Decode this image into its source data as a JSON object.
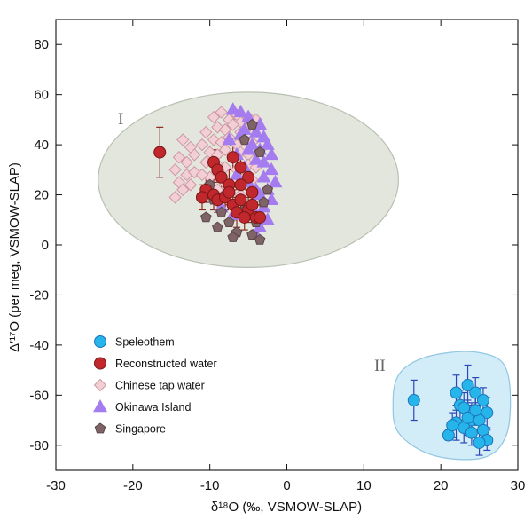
{
  "chart_data": {
    "type": "scatter",
    "x_label": "δ¹⁸O (‰, VSMOW-SLAP)",
    "y_label": "Δ′¹⁷O (per meg, VSMOW-SLAP)",
    "xlim": [
      -30,
      30
    ],
    "ylim": [
      -90,
      90
    ],
    "x_ticks": [
      -30,
      -20,
      -10,
      0,
      10,
      20,
      30
    ],
    "y_ticks": [
      -80,
      -60,
      -40,
      -20,
      0,
      20,
      40,
      60,
      80
    ],
    "x_tick_labels": [
      "-30",
      "-20",
      "-10",
      "0",
      "10",
      "20",
      "30"
    ],
    "y_tick_labels": [
      "-80",
      "-60",
      "-40",
      "-20",
      "0",
      "20",
      "40",
      "60",
      "80"
    ],
    "regions": [
      {
        "label": "I",
        "shape": "circle",
        "fill": "#e3e6dd",
        "stroke": "#b9bfb3",
        "cx": -5.0,
        "cy": 26.0,
        "rx": 19.5,
        "ry": 35.0
      },
      {
        "label": "II",
        "fill": "#d3edf8",
        "stroke": "#90c6e2"
      }
    ],
    "legend": [
      {
        "name": "Speleothem",
        "marker": "circle",
        "color": "#25b5ea",
        "edge": "#1d74b8"
      },
      {
        "name": "Reconstructed water",
        "marker": "circle",
        "color": "#c1282d",
        "edge": "#7a1614"
      },
      {
        "name": "Chinese tap water",
        "marker": "diamond",
        "color": "#f1cfd5",
        "edge": "#cf98a1"
      },
      {
        "name": "Okinawa Island",
        "marker": "triangle",
        "color": "#a57cf0",
        "edge": "#a57cf0"
      },
      {
        "name": "Singapore",
        "marker": "pentagon",
        "color": "#7e6467",
        "edge": "#5b4547"
      }
    ],
    "series": [
      {
        "name": "Chinese tap water",
        "points": [
          [
            -9.5,
            51
          ],
          [
            -8.5,
            53
          ],
          [
            -7.5,
            50
          ],
          [
            -6.5,
            52
          ],
          [
            -6,
            49
          ],
          [
            -5,
            51
          ],
          [
            -4,
            50
          ],
          [
            -9,
            47
          ],
          [
            -8,
            46
          ],
          [
            -7,
            48
          ],
          [
            -6,
            45
          ],
          [
            -5,
            47
          ],
          [
            -9.5,
            42
          ],
          [
            -8.5,
            41
          ],
          [
            -7.5,
            43
          ],
          [
            -6.5,
            40
          ],
          [
            -5.5,
            42
          ],
          [
            -4.5,
            41
          ],
          [
            -10,
            37
          ],
          [
            -9,
            36
          ],
          [
            -8,
            38
          ],
          [
            -7,
            35
          ],
          [
            -6,
            37
          ],
          [
            -5,
            36
          ],
          [
            -9,
            32
          ],
          [
            -8,
            31
          ],
          [
            -6.5,
            30
          ],
          [
            -5,
            32
          ],
          [
            -4,
            31
          ],
          [
            -10,
            27
          ],
          [
            -8.5,
            26
          ],
          [
            -7,
            25
          ],
          [
            -5.5,
            27
          ],
          [
            -4.5,
            26
          ],
          [
            -9,
            22
          ],
          [
            -7.5,
            21
          ],
          [
            -6,
            20
          ],
          [
            -4.5,
            22
          ],
          [
            -13.5,
            42
          ],
          [
            -12.5,
            39
          ],
          [
            -14,
            35
          ],
          [
            -13,
            33
          ],
          [
            -12,
            36
          ],
          [
            -14.5,
            30
          ],
          [
            -13,
            28
          ],
          [
            -12,
            29
          ],
          [
            -14,
            25
          ],
          [
            -13.5,
            22
          ],
          [
            -12.5,
            24
          ],
          [
            -14.5,
            19
          ],
          [
            -10.5,
            45
          ],
          [
            -11,
            40
          ],
          [
            -10.5,
            33
          ],
          [
            -11,
            28
          ]
        ]
      },
      {
        "name": "Okinawa Island",
        "points": [
          [
            -7,
            54
          ],
          [
            -6,
            53
          ],
          [
            -5,
            51
          ],
          [
            -3.5,
            48
          ],
          [
            -5.5,
            46
          ],
          [
            -4,
            45
          ],
          [
            -3,
            43
          ],
          [
            -2.5,
            40
          ],
          [
            -4.5,
            40
          ],
          [
            -3.5,
            38
          ],
          [
            -2,
            36
          ],
          [
            -3,
            33
          ],
          [
            -2,
            30
          ],
          [
            -3,
            27
          ],
          [
            -1.5,
            25
          ],
          [
            -2.5,
            22
          ],
          [
            -3.5,
            20
          ],
          [
            -2,
            18
          ],
          [
            -3,
            15
          ],
          [
            -4,
            12
          ],
          [
            -2.5,
            10
          ],
          [
            -3.5,
            7
          ],
          [
            -4,
            4
          ],
          [
            -6,
            44
          ],
          [
            -7.5,
            42
          ],
          [
            -5,
            38
          ],
          [
            -6.5,
            36
          ],
          [
            -4,
            34
          ],
          [
            -5.5,
            31
          ],
          [
            -6.5,
            28
          ],
          [
            -5,
            25
          ],
          [
            -4,
            22
          ],
          [
            -6,
            18
          ],
          [
            -5,
            15
          ],
          [
            -7,
            12
          ],
          [
            -8.5,
            15
          ]
        ]
      },
      {
        "name": "Singapore",
        "points": [
          [
            -4.5,
            48
          ],
          [
            -5.5,
            42
          ],
          [
            -3.5,
            37
          ],
          [
            -9,
            30
          ],
          [
            -10,
            24
          ],
          [
            -9.5,
            18
          ],
          [
            -8.5,
            13
          ],
          [
            -7.5,
            9
          ],
          [
            -6.5,
            5
          ],
          [
            -4.5,
            4
          ],
          [
            -3.5,
            2
          ],
          [
            -9,
            7
          ],
          [
            -10.5,
            11
          ],
          [
            -5.5,
            14
          ],
          [
            -3,
            17
          ],
          [
            -2.5,
            22
          ],
          [
            -4,
            9
          ],
          [
            -7,
            3
          ],
          [
            -8,
            20
          ],
          [
            -6,
            24
          ]
        ]
      },
      {
        "name": "Reconstructed water",
        "points": [
          [
            -16.5,
            37
          ],
          [
            -9.5,
            33
          ],
          [
            -9,
            30
          ],
          [
            -7,
            35
          ],
          [
            -6,
            31
          ],
          [
            -5,
            27
          ],
          [
            -8.5,
            27
          ],
          [
            -7.5,
            24
          ],
          [
            -6,
            24
          ],
          [
            -4.5,
            21
          ],
          [
            -10.5,
            22
          ],
          [
            -9.5,
            20
          ],
          [
            -9,
            18
          ],
          [
            -8,
            19
          ],
          [
            -7,
            16
          ],
          [
            -6,
            18
          ],
          [
            -5,
            14
          ],
          [
            -4,
            11
          ],
          [
            -3.5,
            11
          ],
          [
            -6.5,
            13
          ],
          [
            -5.5,
            11
          ],
          [
            -4.5,
            16
          ],
          [
            -7.5,
            21
          ],
          [
            -11,
            19
          ]
        ],
        "yerr": [
          10,
          5,
          5,
          5,
          5,
          5,
          5,
          6,
          6,
          5,
          5,
          6,
          5,
          5,
          6,
          5,
          5,
          5,
          5,
          6,
          5,
          5,
          5,
          5
        ]
      },
      {
        "name": "Speleothem",
        "points": [
          [
            16.5,
            -62
          ],
          [
            21,
            -76
          ],
          [
            22,
            -59
          ],
          [
            22.5,
            -64
          ],
          [
            23.5,
            -56
          ],
          [
            24.5,
            -59
          ],
          [
            25.5,
            -62
          ],
          [
            26,
            -67
          ],
          [
            23,
            -65
          ],
          [
            24,
            -70
          ],
          [
            25,
            -70
          ],
          [
            22,
            -71
          ],
          [
            23,
            -73
          ],
          [
            24,
            -75
          ],
          [
            25.5,
            -74
          ],
          [
            26,
            -78
          ],
          [
            25,
            -79
          ],
          [
            23.5,
            -69
          ],
          [
            24.5,
            -66
          ],
          [
            21.5,
            -72
          ]
        ],
        "yerr": [
          8,
          2,
          7,
          6,
          8,
          6,
          5,
          6,
          6,
          7,
          7,
          7,
          6,
          5,
          5,
          4,
          5,
          7,
          6,
          5
        ]
      }
    ]
  },
  "region_labels": {
    "first": "I",
    "second": "II"
  }
}
